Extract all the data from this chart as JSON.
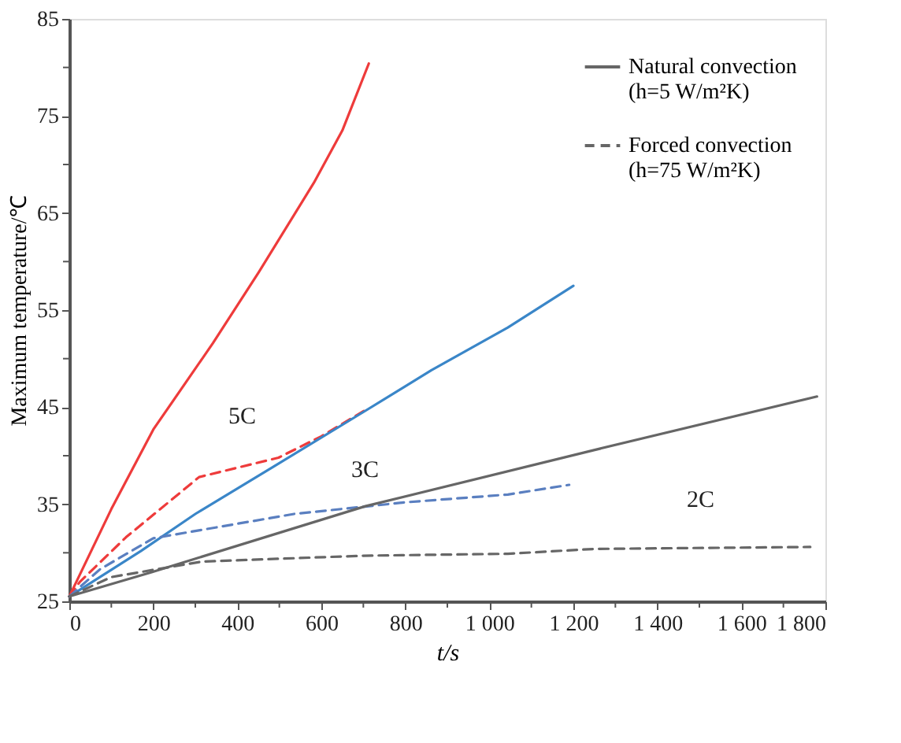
{
  "chart_data": {
    "type": "line",
    "xlabel": "t/s",
    "ylabel": "Maximum temperature/℃",
    "xlim": [
      0,
      1800
    ],
    "ylim": [
      25,
      85
    ],
    "xticks": [
      0,
      {
        "value": 100,
        "label": null
      },
      200,
      {
        "value": 300,
        "label": null
      },
      400,
      {
        "value": 500,
        "label": null
      },
      600,
      {
        "value": 700,
        "label": null
      },
      800,
      {
        "value": 900,
        "label": null
      },
      {
        "value": 1000,
        "label": "1 000"
      },
      {
        "value": 1100,
        "label": null
      },
      {
        "value": 1200,
        "label": "1 200"
      },
      {
        "value": 1300,
        "label": null
      },
      {
        "value": 1400,
        "label": "1 400"
      },
      {
        "value": 1500,
        "label": null
      },
      {
        "value": 1600,
        "label": "1 600"
      },
      {
        "value": 1700,
        "label": null
      },
      {
        "value": 1800,
        "label": "1 800"
      }
    ],
    "yticks": [
      25,
      {
        "value": 30,
        "label": null
      },
      35,
      {
        "value": 40,
        "label": null
      },
      45,
      {
        "value": 50,
        "label": null
      },
      55,
      {
        "value": 60,
        "label": null
      },
      65,
      {
        "value": 70,
        "label": null
      },
      75,
      {
        "value": 80,
        "label": null
      },
      85
    ],
    "grid": false,
    "legend": "top right",
    "marker": "none",
    "series": [
      {
        "color": "#ee3b3b",
        "line_style": "solid",
        "x": [
          0,
          100,
          200,
          342,
          451,
          582,
          650,
          713
        ],
        "values": [
          25.5,
          34.5,
          42.7,
          51.6,
          58.9,
          68.1,
          73.5,
          80.4
        ]
      },
      {
        "color": "#ee3b3b",
        "line_style": "dashed",
        "x": [
          0,
          25,
          135,
          309,
          498,
          600,
          705
        ],
        "values": [
          25.5,
          27,
          31.6,
          37.8,
          39.8,
          42,
          44.7
        ]
      },
      {
        "color": "#3a86c8",
        "line_style": "solid",
        "x": [
          0,
          171,
          300,
          487,
          700,
          862,
          1044,
          1200
        ],
        "values": [
          25.5,
          30.2,
          34,
          38.9,
          44.5,
          48.8,
          53.2,
          57.5
        ]
      },
      {
        "color": "#5a7fc0",
        "line_style": "dashed",
        "x": [
          0,
          73,
          200,
          535,
          800,
          1044,
          1190
        ],
        "values": [
          25.5,
          28.3,
          31.5,
          34,
          35.2,
          36,
          37
        ]
      },
      {
        "name": "Natural convection\n(h=5 W/m²K)",
        "color": "#666666",
        "line_style": "solid",
        "x": [
          0,
          196,
          705,
          1251,
          1780
        ],
        "values": [
          25.5,
          28,
          34.8,
          40.6,
          46.1
        ]
      },
      {
        "name": "Forced convection\n(h=75 W/m²K)",
        "color": "#666666",
        "line_style": "dashed",
        "x": [
          0,
          100,
          316,
          700,
          1044,
          1251,
          1764
        ],
        "values": [
          25.5,
          27.5,
          29.1,
          29.7,
          29.9,
          30.4,
          30.6
        ]
      }
    ],
    "annotations": [
      "5C",
      "3C",
      "2C"
    ]
  }
}
